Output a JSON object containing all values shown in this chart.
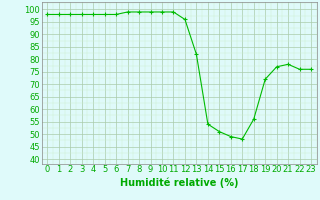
{
  "x": [
    0,
    1,
    2,
    3,
    4,
    5,
    6,
    7,
    8,
    9,
    10,
    11,
    12,
    13,
    14,
    15,
    16,
    17,
    18,
    19,
    20,
    21,
    22,
    23
  ],
  "y": [
    98,
    98,
    98,
    98,
    98,
    98,
    98,
    99,
    99,
    99,
    99,
    99,
    96,
    82,
    54,
    51,
    49,
    48,
    56,
    72,
    77,
    78,
    76,
    76
  ],
  "line_color": "#00BB00",
  "marker": "+",
  "marker_color": "#00BB00",
  "bg_color": "#DFFAFA",
  "xlabel": "Humidité relative (%)",
  "xlabel_color": "#00AA00",
  "xlabel_fontsize": 7,
  "ylabel_ticks": [
    40,
    45,
    50,
    55,
    60,
    65,
    70,
    75,
    80,
    85,
    90,
    95,
    100
  ],
  "ylim": [
    38,
    103
  ],
  "xlim": [
    -0.5,
    23.5
  ],
  "tick_fontsize": 6,
  "tick_color": "#00AA00",
  "grid_major_color": "#AACCAA",
  "grid_minor_color": "#CCEECC"
}
